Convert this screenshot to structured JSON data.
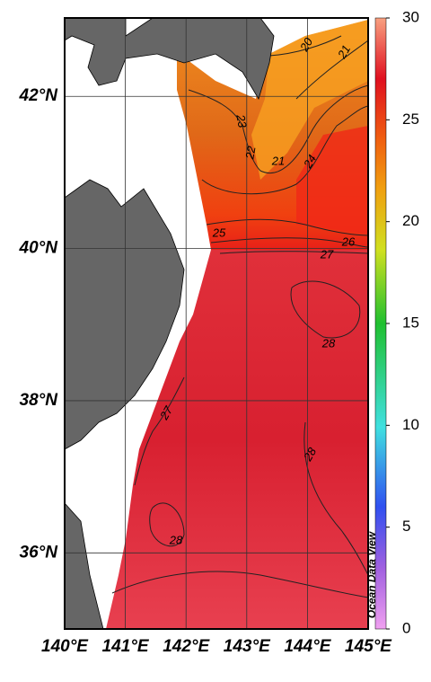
{
  "map": {
    "x_axis": {
      "xlim": [
        140,
        145
      ],
      "ticks": [
        {
          "value": 140,
          "label": "140°E"
        },
        {
          "value": 141,
          "label": "141°E"
        },
        {
          "value": 142,
          "label": "142°E"
        },
        {
          "value": 143,
          "label": "143°E"
        },
        {
          "value": 144,
          "label": "144°E"
        },
        {
          "value": 145,
          "label": "145°E"
        }
      ]
    },
    "y_axis": {
      "ylim": [
        35,
        43.03
      ],
      "ticks": [
        {
          "value": 36,
          "label": "36°N"
        },
        {
          "value": 38,
          "label": "38°N"
        },
        {
          "value": 40,
          "label": "40°N"
        },
        {
          "value": 42,
          "label": "42°N"
        }
      ]
    },
    "colorbar": {
      "lim": [
        0,
        30
      ],
      "ticks": [
        0,
        5,
        10,
        15,
        20,
        25,
        30
      ]
    },
    "contour_labels": [
      "20",
      "21",
      "23",
      "22",
      "21",
      "24",
      "25",
      "26",
      "27",
      "28",
      "27",
      "28",
      "28"
    ],
    "credit": "Ocean Data View"
  }
}
